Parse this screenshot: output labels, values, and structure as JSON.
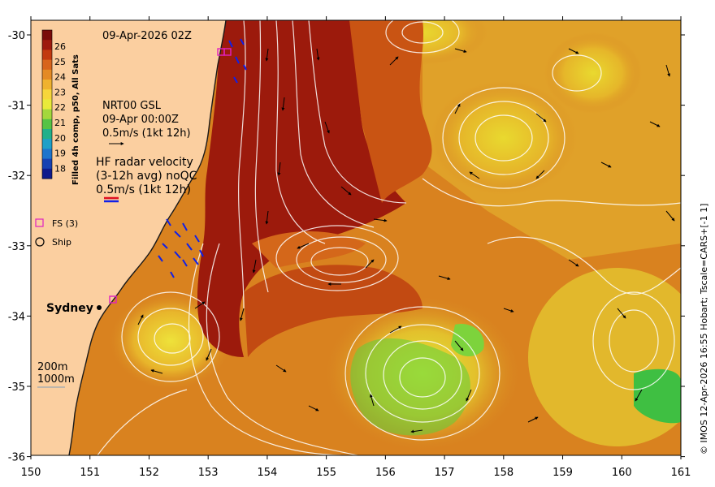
{
  "map": {
    "date_title": "09-Apr-2026 02Z",
    "colorbar": {
      "label": "Filled 4h comp, p50, All Sats",
      "ticks": [
        "26",
        "25",
        "24",
        "23",
        "22",
        "21",
        "20",
        "19",
        "18"
      ],
      "colors": [
        "#7a0c0a",
        "#9e1a0e",
        "#c2390f",
        "#d8641c",
        "#e48a24",
        "#efb22e",
        "#f6d63a",
        "#e9ea3a",
        "#a4d83c",
        "#56c345",
        "#21b08a",
        "#1ea0c8",
        "#1d74cc",
        "#1741b2",
        "#0f1a8c"
      ]
    },
    "legend_nrt": {
      "line1": "NRT00 GSL",
      "line2": "09-Apr 00:00Z",
      "line3": "0.5m/s (1kt 12h)"
    },
    "legend_hf": {
      "line1": "HF radar velocity",
      "line2": "(3-12h avg) noQC",
      "line3": "0.5m/s (1kt 12h)"
    },
    "legend_fs": "FS (3)",
    "legend_ship": "Ship",
    "place_sydney": "Sydney",
    "depth_200": "200m",
    "depth_1000": "1000m",
    "credit": "© IMOS 12-Apr-2026 16:55 Hobart; Tscale=CARS+[-1 1]",
    "x_ticks": [
      "150",
      "151",
      "152",
      "153",
      "154",
      "155",
      "156",
      "157",
      "158",
      "159",
      "160",
      "161"
    ],
    "y_ticks": [
      "-30",
      "-31",
      "-32",
      "-33",
      "-34",
      "-35",
      "-36"
    ],
    "colors": {
      "land": "#fbcfa0",
      "warm_core": "#9c1a0c",
      "sst_mid": "#d2781c",
      "sst_warm_orange": "#c95413",
      "sst_yellow": "#e8cc2e",
      "sst_green": "#5fcf3c",
      "contour": "#ffffff",
      "radar_vector": "#1020e8",
      "fs_marker": "#e020c0"
    }
  }
}
